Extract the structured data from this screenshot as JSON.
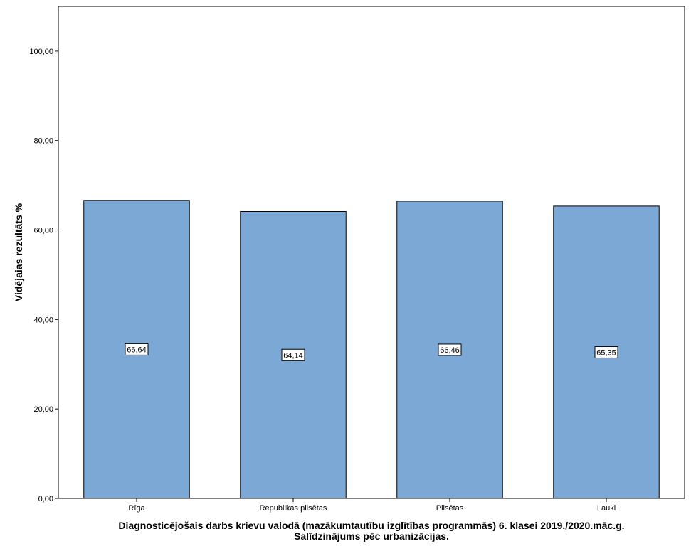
{
  "chart_data": {
    "type": "bar",
    "categories": [
      "Rīga",
      "Republikas pilsētas",
      "Pilsētas",
      "Lauki"
    ],
    "values": [
      66.64,
      64.14,
      66.46,
      65.35
    ],
    "value_labels": [
      "66,64",
      "64,14",
      "66,46",
      "65,35"
    ],
    "title": "",
    "xlabel_line1": "Diagnosticējošais darbs krievu valodā (mazākumtautību izglītības programmās) 6. klasei 2019./2020.māc.g.",
    "xlabel_line2": "Salīdzinājums pēc urbanizācijas.",
    "ylabel": "Vidējaias rezultāts %",
    "ylim": [
      0,
      110
    ],
    "yticks": [
      0,
      20,
      40,
      60,
      80,
      100
    ],
    "ytick_labels": [
      "0,00",
      "20,00",
      "40,00",
      "60,00",
      "80,00",
      "100,00"
    ],
    "grid": false,
    "legend": "none",
    "bar_color": "#7ba8d5",
    "bar_edge_color": "#000000"
  }
}
